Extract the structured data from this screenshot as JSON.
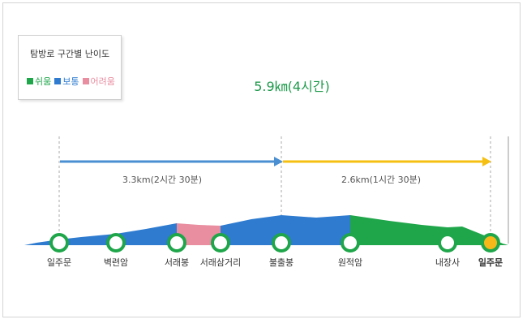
{
  "legend": {
    "title": "탐방로 구간별 난이도",
    "items": [
      {
        "label": "쉬움",
        "color": "#1fa64a"
      },
      {
        "label": "보통",
        "color": "#2e7bd0"
      },
      {
        "label": "어려움",
        "color": "#e88ea0"
      }
    ]
  },
  "route": {
    "total": "5.9㎞(4시간)",
    "segments": [
      {
        "label": "3.3km(2시간 30분)",
        "color": "#4a8fd2"
      },
      {
        "label": "2.6km(1시간 30분)",
        "color": "#f6c012"
      }
    ],
    "stops": [
      {
        "name": "일주문"
      },
      {
        "name": "벽련암"
      },
      {
        "name": "서래봉"
      },
      {
        "name": "서래삼거리"
      },
      {
        "name": "불출봉"
      },
      {
        "name": "원적암"
      },
      {
        "name": "내장사"
      },
      {
        "name": "일주문"
      }
    ],
    "stop_color": "#1fa64a",
    "end_stop_color": "#f6b819"
  }
}
